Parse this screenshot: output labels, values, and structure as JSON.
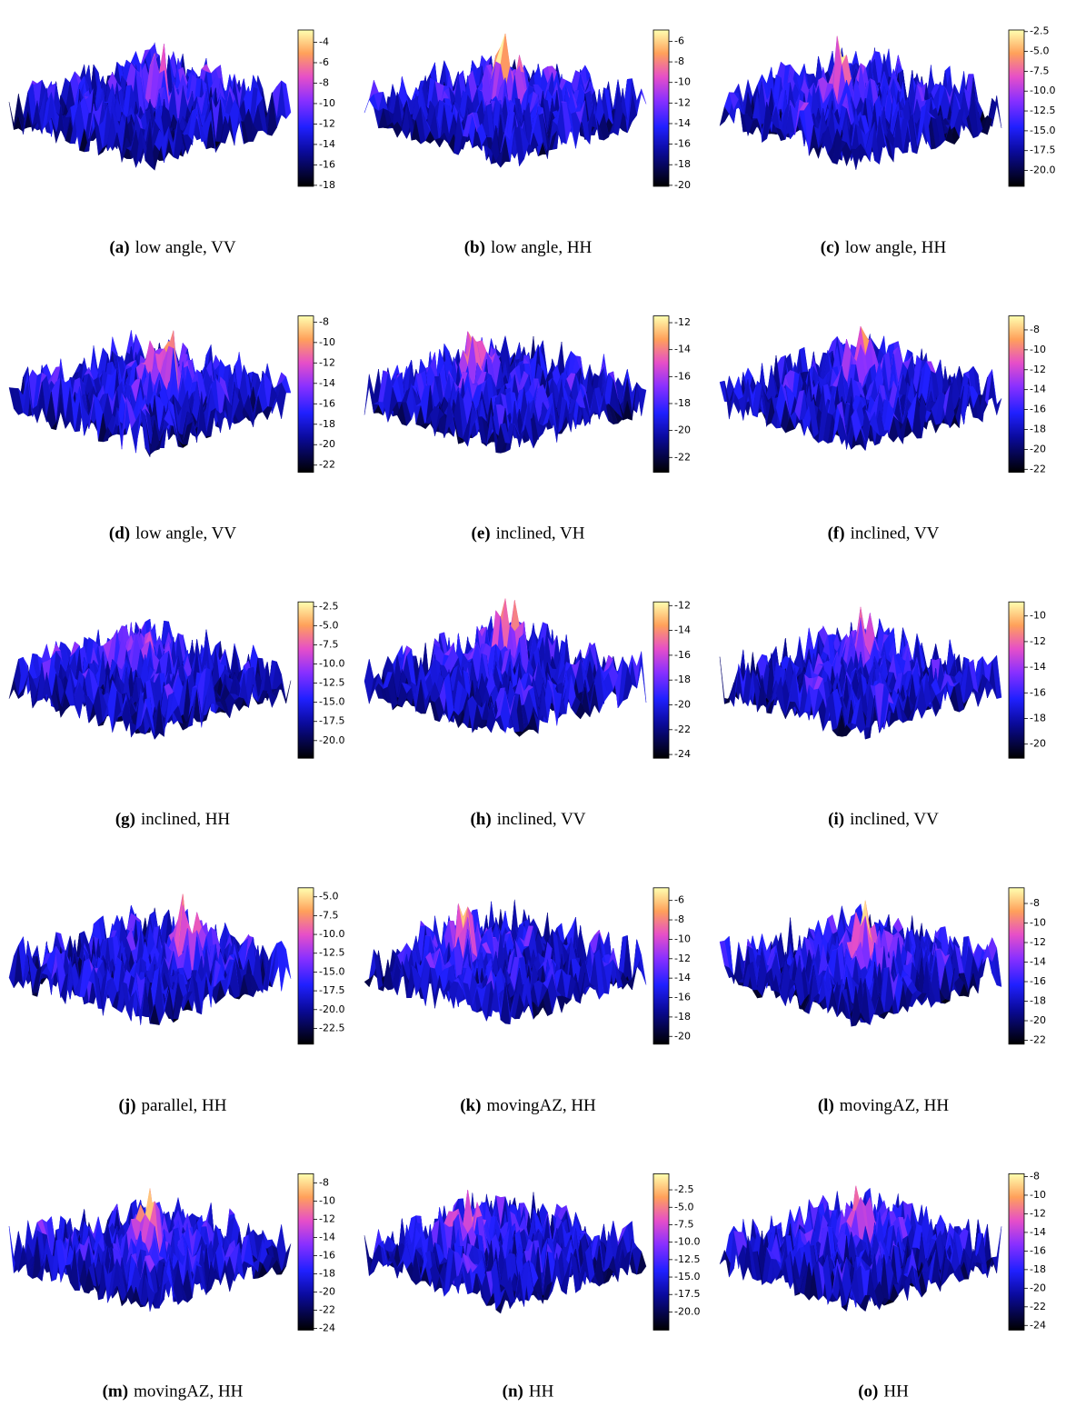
{
  "panels": [
    {
      "label": "(a)",
      "caption": "low angle, VV",
      "colorbar": {
        "lim": [
          -18.1,
          -2.8
        ],
        "ticks": [
          -4,
          -6,
          -8,
          -10,
          -12,
          -14,
          -16,
          -18
        ]
      }
    },
    {
      "label": "(b)",
      "caption": "low angle, HH",
      "colorbar": {
        "lim": [
          -20.1,
          -4.9
        ],
        "ticks": [
          -6,
          -8,
          -10,
          -12,
          -14,
          -16,
          -18,
          -20
        ]
      }
    },
    {
      "label": "(c)",
      "caption": "low angle, HH",
      "colorbar": {
        "lim": [
          -22,
          -2.3
        ],
        "ticks": [
          -2.5,
          {
            "value": -5,
            "label": "-5.0"
          },
          -7.5,
          {
            "value": -10,
            "label": "-10.0"
          },
          -12.5,
          {
            "value": -15,
            "label": "-15.0"
          },
          -17.5,
          {
            "value": -20,
            "label": "-20.0"
          }
        ]
      }
    },
    {
      "label": "(d)",
      "caption": "low angle, VV",
      "colorbar": {
        "lim": [
          -22.7,
          -7.4
        ],
        "ticks": [
          -8,
          -10,
          -12,
          -14,
          -16,
          -18,
          -20,
          -22
        ]
      }
    },
    {
      "label": "(e)",
      "caption": "inclined, VH",
      "colorbar": {
        "lim": [
          -23.1,
          -11.5
        ],
        "ticks": [
          -12,
          -14,
          -16,
          -18,
          -20,
          -22
        ]
      }
    },
    {
      "label": "(f)",
      "caption": "inclined, VV",
      "colorbar": {
        "lim": [
          -22.3,
          -6.6
        ],
        "ticks": [
          -8,
          -10,
          -12,
          -14,
          -16,
          -18,
          -20,
          -22
        ]
      }
    },
    {
      "label": "(g)",
      "caption": "inclined, HH",
      "colorbar": {
        "lim": [
          -22.3,
          -1.9
        ],
        "ticks": [
          -2.5,
          {
            "value": -5,
            "label": "-5.0"
          },
          -7.5,
          {
            "value": -10,
            "label": "-10.0"
          },
          -12.5,
          {
            "value": -15,
            "label": "-15.0"
          },
          -17.5,
          {
            "value": -20,
            "label": "-20.0"
          }
        ]
      }
    },
    {
      "label": "(h)",
      "caption": "inclined, VV",
      "colorbar": {
        "lim": [
          -24.3,
          -11.7
        ],
        "ticks": [
          -12,
          -14,
          -16,
          -18,
          -20,
          -22,
          -24
        ]
      }
    },
    {
      "label": "(i)",
      "caption": "inclined, VV",
      "colorbar": {
        "lim": [
          -21.1,
          -8.9
        ],
        "ticks": [
          -10,
          -12,
          -14,
          -16,
          -18,
          -20
        ]
      }
    },
    {
      "label": "(j)",
      "caption": "parallel, HH",
      "colorbar": {
        "lim": [
          -24.6,
          -3.8
        ],
        "ticks": [
          {
            "value": -5,
            "label": "-5.0"
          },
          -7.5,
          {
            "value": -10,
            "label": "-10.0"
          },
          -12.5,
          {
            "value": -15,
            "label": "-15.0"
          },
          -17.5,
          {
            "value": -20,
            "label": "-20.0"
          },
          -22.5
        ]
      }
    },
    {
      "label": "(k)",
      "caption": "movingAZ, HH",
      "colorbar": {
        "lim": [
          -20.8,
          -4.7
        ],
        "ticks": [
          -6,
          -8,
          -10,
          -12,
          -14,
          -16,
          -18,
          -20
        ]
      }
    },
    {
      "label": "(l)",
      "caption": "movingAZ, HH",
      "colorbar": {
        "lim": [
          -22.4,
          -6.4
        ],
        "ticks": [
          -8,
          -10,
          -12,
          -14,
          -16,
          -18,
          -20,
          -22
        ]
      }
    },
    {
      "label": "(m)",
      "caption": "movingAZ, HH",
      "colorbar": {
        "lim": [
          -24.2,
          -7
        ],
        "ticks": [
          -8,
          -10,
          -12,
          -14,
          -16,
          -18,
          -20,
          -22,
          -24
        ]
      }
    },
    {
      "label": "(n)",
      "caption": "HH",
      "colorbar": {
        "lim": [
          -22.6,
          -0.2
        ],
        "ticks": [
          -2.5,
          {
            "value": -5,
            "label": "-5.0"
          },
          -7.5,
          {
            "value": -10,
            "label": "-10.0"
          },
          -12.5,
          {
            "value": -15,
            "label": "-15.0"
          },
          -17.5,
          {
            "value": -20,
            "label": "-20.0"
          }
        ]
      }
    },
    {
      "label": "(o)",
      "caption": "HH",
      "colorbar": {
        "lim": [
          -24.5,
          -7.7
        ],
        "ticks": [
          -8,
          -10,
          -12,
          -14,
          -16,
          -18,
          -20,
          -22,
          -24
        ]
      }
    }
  ]
}
